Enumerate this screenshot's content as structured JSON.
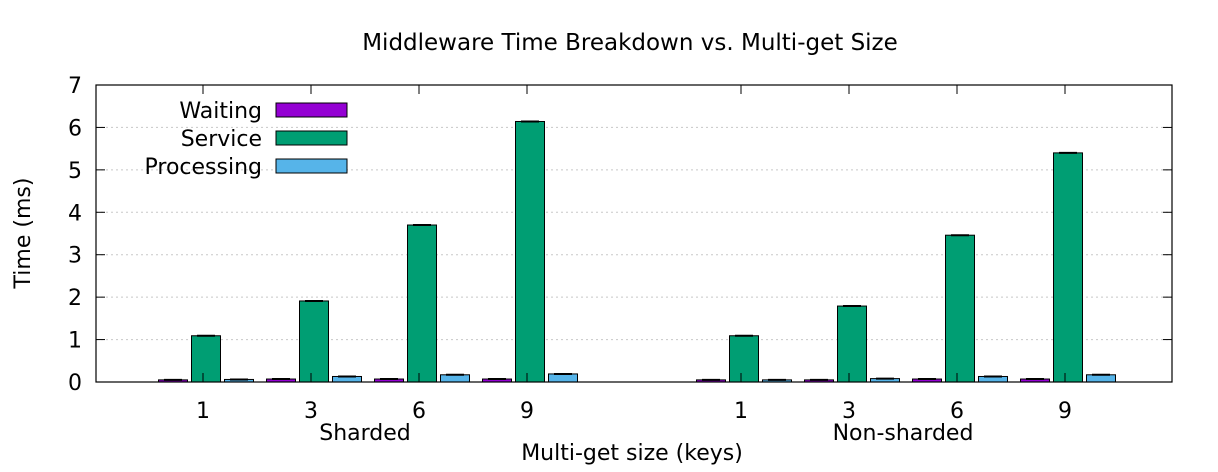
{
  "chart_data": {
    "type": "bar",
    "title": "Middleware Time Breakdown vs. Multi-get Size",
    "xlabel": "Multi-get size (keys)",
    "ylabel": "Time (ms)",
    "ylim": [
      0,
      7
    ],
    "yticks": [
      "0",
      "1",
      "2",
      "3",
      "4",
      "5",
      "6",
      "7"
    ],
    "grid": true,
    "legend_position": "top-left",
    "groups": [
      {
        "label": "Sharded",
        "categories": [
          "1",
          "3",
          "6",
          "9"
        ],
        "series": [
          {
            "name": "Waiting",
            "color": "#9400d3",
            "values": [
              0.05,
              0.07,
              0.07,
              0.07
            ]
          },
          {
            "name": "Service",
            "color": "#009e73",
            "values": [
              1.09,
              1.91,
              3.7,
              6.14
            ]
          },
          {
            "name": "Processing",
            "color": "#56b4e9",
            "values": [
              0.06,
              0.13,
              0.17,
              0.19
            ]
          }
        ]
      },
      {
        "label": "Non-sharded",
        "categories": [
          "1",
          "3",
          "6",
          "9"
        ],
        "series": [
          {
            "name": "Waiting",
            "color": "#9400d3",
            "values": [
              0.05,
              0.05,
              0.07,
              0.07
            ]
          },
          {
            "name": "Service",
            "color": "#009e73",
            "values": [
              1.09,
              1.79,
              3.46,
              5.4
            ]
          },
          {
            "name": "Processing",
            "color": "#56b4e9",
            "values": [
              0.05,
              0.08,
              0.13,
              0.17
            ]
          }
        ]
      }
    ]
  }
}
